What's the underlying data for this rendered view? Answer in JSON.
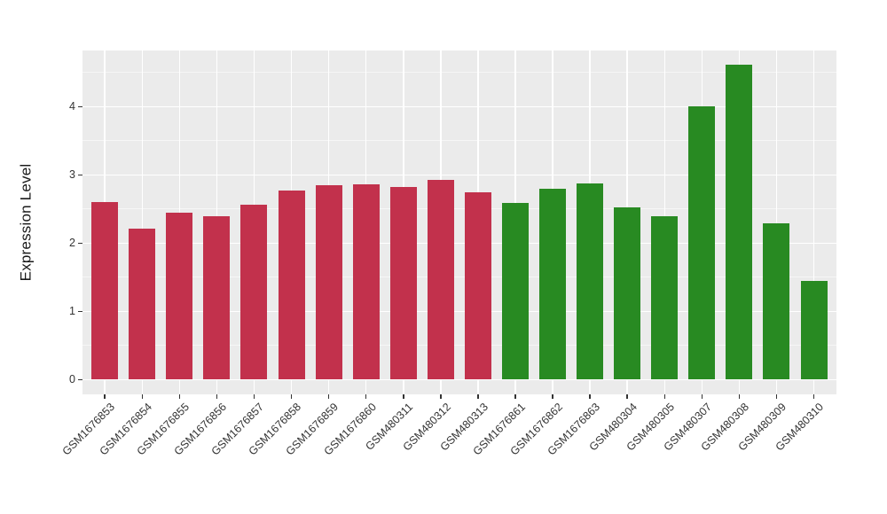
{
  "chart_data": {
    "type": "bar",
    "title": "",
    "xlabel": "",
    "ylabel": "Expression Level",
    "categories": [
      "GSM1676853",
      "GSM1676854",
      "GSM1676855",
      "GSM1676856",
      "GSM1676857",
      "GSM1676858",
      "GSM1676859",
      "GSM1676860",
      "GSM480311",
      "GSM480312",
      "GSM480313",
      "GSM1676861",
      "GSM1676862",
      "GSM1676863",
      "GSM480304",
      "GSM480305",
      "GSM480307",
      "GSM480308",
      "GSM480309",
      "GSM480310"
    ],
    "values": [
      2.6,
      2.21,
      2.44,
      2.4,
      2.56,
      2.77,
      2.85,
      2.86,
      2.82,
      2.93,
      2.74,
      2.59,
      2.79,
      2.87,
      2.53,
      2.4,
      4.01,
      4.62,
      2.29,
      1.44
    ],
    "bar_colors": [
      "#C2314C",
      "#C2314C",
      "#C2314C",
      "#C2314C",
      "#C2314C",
      "#C2314C",
      "#C2314C",
      "#C2314C",
      "#C2314C",
      "#C2314C",
      "#C2314C",
      "#288A22",
      "#288A22",
      "#288A22",
      "#288A22",
      "#288A22",
      "#288A22",
      "#288A22",
      "#288A22",
      "#288A22"
    ],
    "palette": {
      "red": "#C2314C",
      "green": "#288A22"
    },
    "y_ticks": [
      0,
      1,
      2,
      3,
      4
    ],
    "y_minor_gridlines": [
      0.5,
      1.5,
      2.5,
      3.5,
      4.5
    ],
    "ylim": [
      -0.23,
      4.86
    ],
    "grid": true,
    "legend_position": "none",
    "panel_background": "#EBEBEB",
    "gridline_color": "#FFFFFF",
    "axis_text_color": "#333333"
  }
}
